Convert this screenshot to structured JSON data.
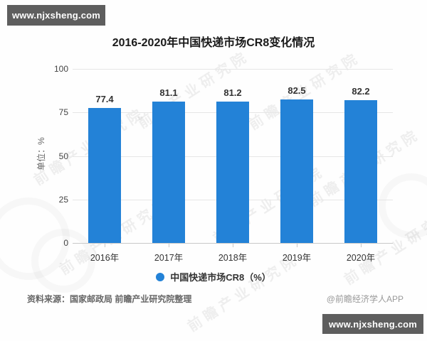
{
  "banners": {
    "top": "www.njxsheng.com",
    "bottom": "www.njxsheng.com"
  },
  "chart_data": {
    "type": "bar",
    "title": "2016-2020年中国快递市场CR8变化情况",
    "categories": [
      "2016年",
      "2017年",
      "2018年",
      "2019年",
      "2020年"
    ],
    "values": [
      77.4,
      81.1,
      81.2,
      82.5,
      82.2
    ],
    "xlabel": "",
    "ylabel": "单位：%",
    "ylim": [
      0,
      100
    ],
    "yticks": [
      0,
      25,
      50,
      75,
      100
    ],
    "grid": true,
    "legend": [
      "中国快递市场CR8（%）"
    ],
    "legend_position": "bottom",
    "bar_color": "#2382d7"
  },
  "footer": {
    "source": "资料来源：国家邮政局 前瞻产业研究院整理",
    "attribution": "@前瞻经济学人APP"
  },
  "watermark": {
    "text": "前瞻产业研究院"
  }
}
